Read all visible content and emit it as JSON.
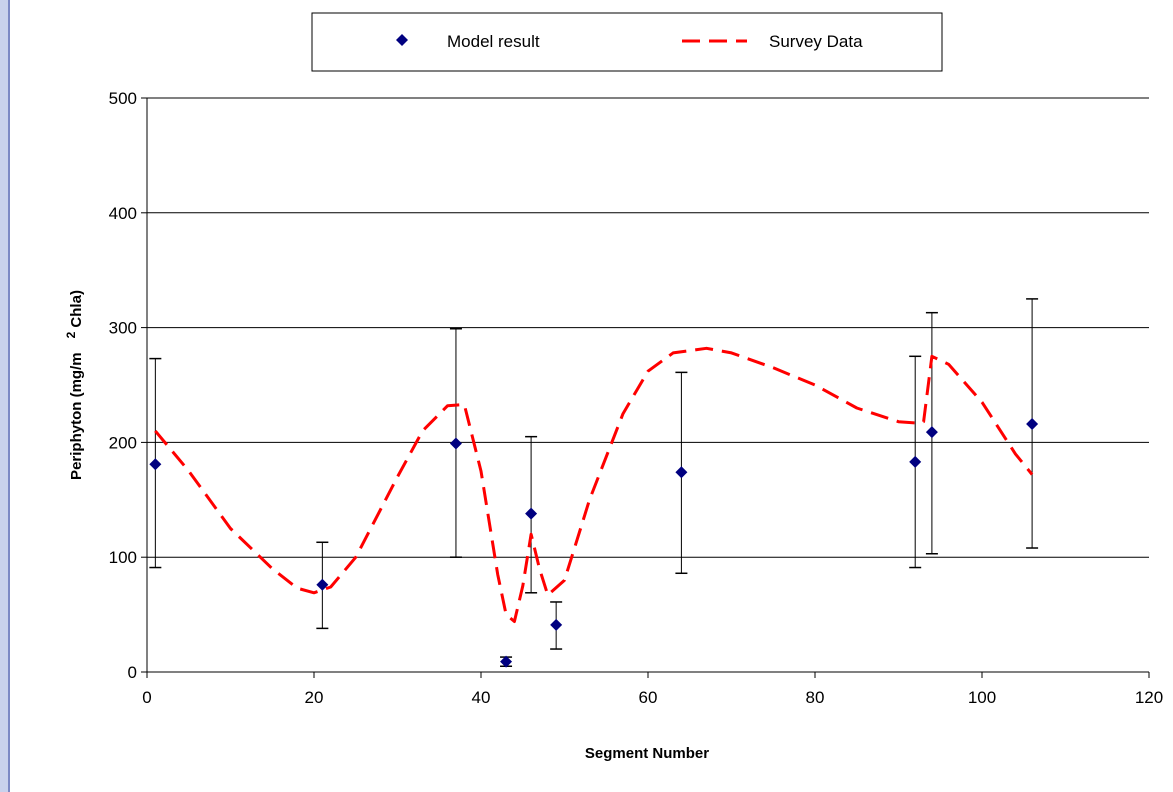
{
  "chart_data": {
    "type": "scatter",
    "xlabel": "Segment Number",
    "ylabel_part1": "Periphyton (mg/m",
    "ylabel_sup": "2",
    "ylabel_part2": " Chla)",
    "xlim": [
      0,
      120
    ],
    "ylim": [
      0,
      500
    ],
    "x_ticks": [
      0,
      20,
      40,
      60,
      80,
      100,
      120
    ],
    "y_ticks": [
      0,
      100,
      200,
      300,
      400,
      500
    ],
    "grid": "horizontal",
    "legend_position": "top-center",
    "series": [
      {
        "name": "Model result",
        "kind": "points-with-error-bars",
        "color": "#000080",
        "points": [
          {
            "x": 1,
            "y": 181,
            "low": 91,
            "high": 273
          },
          {
            "x": 21,
            "y": 76,
            "low": 38,
            "high": 113
          },
          {
            "x": 37,
            "y": 199,
            "low": 100,
            "high": 299
          },
          {
            "x": 43,
            "y": 9,
            "low": 5,
            "high": 13
          },
          {
            "x": 46,
            "y": 138,
            "low": 69,
            "high": 205
          },
          {
            "x": 49,
            "y": 41,
            "low": 20,
            "high": 61
          },
          {
            "x": 64,
            "y": 174,
            "low": 86,
            "high": 261
          },
          {
            "x": 92,
            "y": 183,
            "low": 91,
            "high": 275
          },
          {
            "x": 94,
            "y": 209,
            "low": 103,
            "high": 313
          },
          {
            "x": 106,
            "y": 216,
            "low": 108,
            "high": 325
          }
        ]
      },
      {
        "name": "Survey Data",
        "kind": "dashed-line",
        "color": "#ff0000",
        "x": [
          1,
          5,
          10,
          15,
          18,
          20,
          22,
          25,
          30,
          33,
          36,
          38,
          40,
          42,
          43,
          44,
          45,
          46,
          47,
          48,
          50,
          53,
          57,
          60,
          63,
          67,
          70,
          75,
          80,
          85,
          90,
          92,
          93,
          94,
          96,
          100,
          104,
          106
        ],
        "y": [
          210,
          175,
          125,
          90,
          73,
          69,
          74,
          100,
          170,
          210,
          232,
          233,
          175,
          85,
          50,
          44,
          75,
          120,
          90,
          67,
          80,
          150,
          225,
          262,
          278,
          282,
          278,
          265,
          250,
          230,
          218,
          217,
          218,
          275,
          268,
          235,
          190,
          172
        ]
      }
    ]
  }
}
